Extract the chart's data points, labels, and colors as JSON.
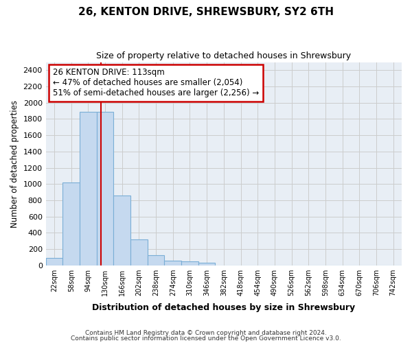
{
  "title": "26, KENTON DRIVE, SHREWSBURY, SY2 6TH",
  "subtitle": "Size of property relative to detached houses in Shrewsbury",
  "xlabel": "Distribution of detached houses by size in Shrewsbury",
  "ylabel": "Number of detached properties",
  "bar_labels": [
    "22sqm",
    "58sqm",
    "94sqm",
    "130sqm",
    "166sqm",
    "202sqm",
    "238sqm",
    "274sqm",
    "310sqm",
    "346sqm",
    "382sqm",
    "418sqm",
    "454sqm",
    "490sqm",
    "526sqm",
    "562sqm",
    "598sqm",
    "634sqm",
    "670sqm",
    "706sqm",
    "742sqm"
  ],
  "bar_values": [
    90,
    1020,
    1890,
    1890,
    860,
    320,
    120,
    55,
    45,
    35,
    0,
    0,
    0,
    0,
    0,
    0,
    0,
    0,
    0,
    0,
    0
  ],
  "bar_color": "#c5d9ef",
  "bar_edgecolor": "#7aaed6",
  "red_line_x": 2.75,
  "annotation_line1": "26 KENTON DRIVE: 113sqm",
  "annotation_line2": "← 47% of detached houses are smaller (2,054)",
  "annotation_line3": "51% of semi-detached houses are larger (2,256) →",
  "annotation_box_color": "#ffffff",
  "annotation_box_edgecolor": "#cc0000",
  "ylim": [
    0,
    2500
  ],
  "yticks": [
    0,
    200,
    400,
    600,
    800,
    1000,
    1200,
    1400,
    1600,
    1800,
    2000,
    2200,
    2400
  ],
  "red_line_color": "#cc0000",
  "grid_color": "#cccccc",
  "background_color": "#e8eef5",
  "footer_line1": "Contains HM Land Registry data © Crown copyright and database right 2024.",
  "footer_line2": "Contains public sector information licensed under the Open Government Licence v3.0."
}
